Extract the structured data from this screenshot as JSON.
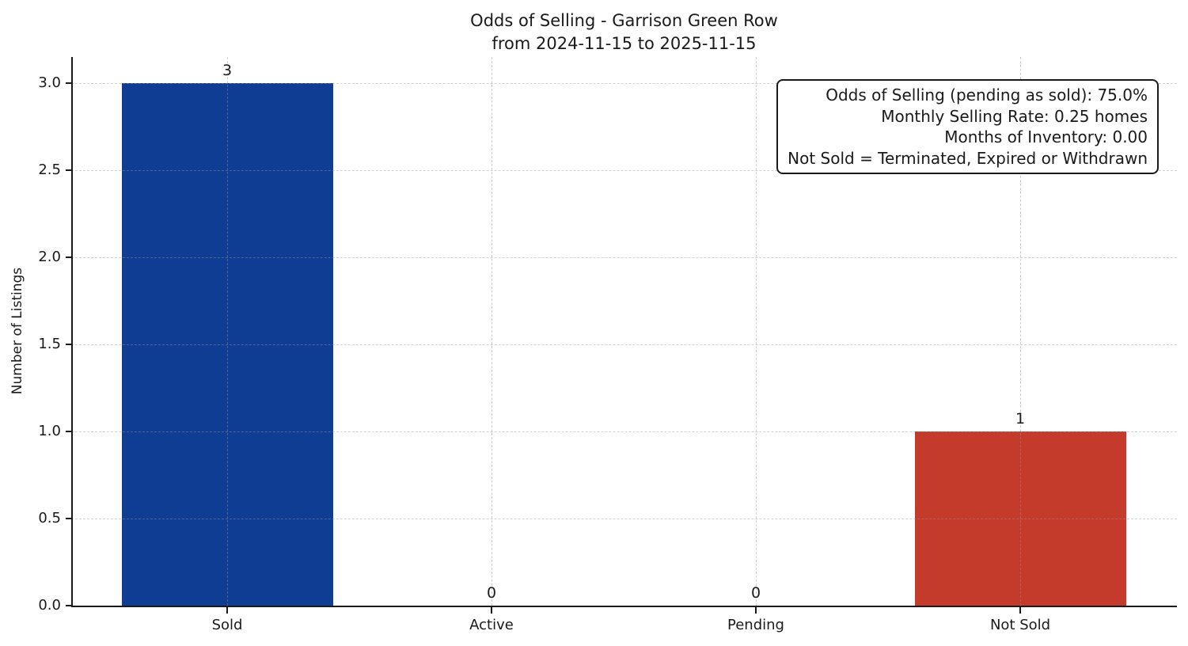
{
  "chart": {
    "title_line1": "Odds of Selling - Garrison Green Row",
    "title_line2": "from 2024-11-15 to 2025-11-15",
    "ylabel": "Number of Listings"
  },
  "annotation": {
    "lines": [
      "Odds of Selling (pending as sold): 75.0%",
      "Monthly Selling Rate: 0.25 homes",
      "Months of Inventory: 0.00",
      "Not Sold = Terminated, Expired or Withdrawn"
    ]
  },
  "chart_data": {
    "type": "bar",
    "title": "Odds of Selling - Garrison Green Row\nfrom 2024-11-15 to 2025-11-15",
    "xlabel": "",
    "ylabel": "Number of Listings",
    "categories": [
      "Sold",
      "Active",
      "Pending",
      "Not Sold"
    ],
    "values": [
      3,
      0,
      0,
      1
    ],
    "bar_value_labels": [
      "3",
      "0",
      "0",
      "1"
    ],
    "bar_colors": [
      "#103d94",
      null,
      null,
      "#c43b2b"
    ],
    "ytick_labels": [
      "0.0",
      "0.5",
      "1.0",
      "1.5",
      "2.0",
      "2.5",
      "3.0"
    ],
    "yticks": [
      0,
      0.5,
      1,
      1.5,
      2,
      2.5,
      3
    ],
    "ylim": [
      0,
      3.15
    ],
    "grid": "both, dashed, drawn above bars",
    "legend": "none",
    "annotation_lines": [
      "Odds of Selling (pending as sold): 75.0%",
      "Monthly Selling Rate: 0.25 homes",
      "Months of Inventory: 0.00",
      "Not Sold = Terminated, Expired or Withdrawn"
    ]
  },
  "colors": {
    "sold_bar": "#103d94",
    "not_sold_bar": "#c43b2b",
    "axis": "#1a1a1a",
    "background": "#ffffff"
  }
}
